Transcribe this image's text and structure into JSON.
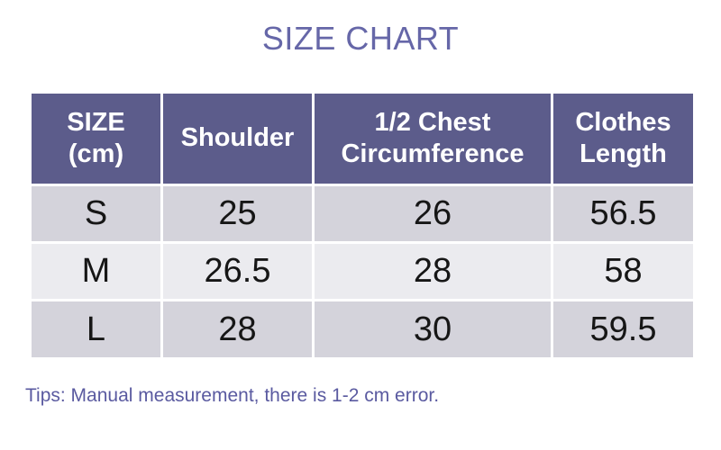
{
  "page": {
    "title": "SIZE CHART",
    "tips": "Tips: Manual measurement, there is 1-2 cm error."
  },
  "table": {
    "header_lines": [
      [
        "SIZE",
        "(cm)"
      ],
      [
        "Shoulder"
      ],
      [
        "1/2 Chest",
        "Circumference"
      ],
      [
        "Clothes",
        "Length"
      ]
    ]
  },
  "chart_data": {
    "type": "table",
    "title": "SIZE CHART",
    "unit_label": "cm",
    "columns": [
      "SIZE (cm)",
      "Shoulder",
      "1/2 Chest Circumference",
      "Clothes Length"
    ],
    "rows": [
      [
        "S",
        25,
        26,
        56.5
      ],
      [
        "M",
        26.5,
        28,
        58
      ],
      [
        "L",
        28,
        30,
        59.5
      ]
    ],
    "note": "Tips: Manual measurement, there is 1-2 cm error."
  },
  "colors": {
    "title_text": "#6667A8",
    "header_bg": "#5C5C8B",
    "header_text": "#FFFFFF",
    "row_dark": "#D4D3DB",
    "row_light": "#EBEBEF",
    "cell_text": "#161616",
    "tips_text": "#5A5AA0",
    "gap": "#FFFFFF"
  }
}
